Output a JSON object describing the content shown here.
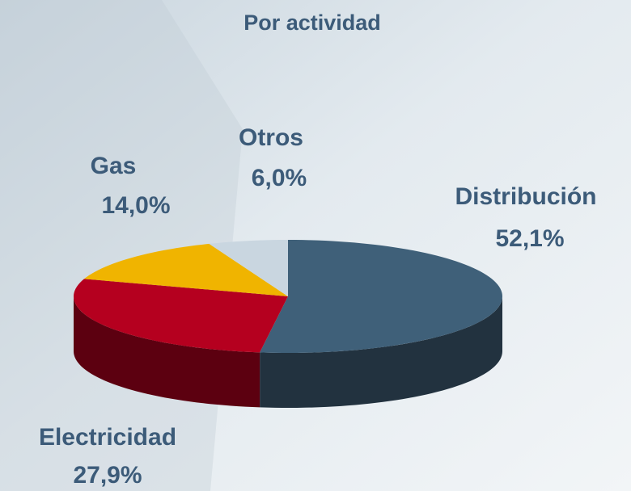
{
  "chart_data": {
    "type": "pie3d",
    "title": "Por actividad",
    "categories": [
      "Distribución",
      "Electricidad",
      "Gas",
      "Otros"
    ],
    "values": [
      52.1,
      27.9,
      14.0,
      6.0
    ],
    "value_labels": [
      "52,1%",
      "27,9%",
      "14,0%",
      "6,0%"
    ],
    "colors": [
      "#3f6079",
      "#b5001f",
      "#f0b400",
      "#c9d6e0"
    ],
    "side_colors": [
      "#22323f",
      "#5c0010",
      "#8a6700",
      "#7f8c96"
    ]
  }
}
